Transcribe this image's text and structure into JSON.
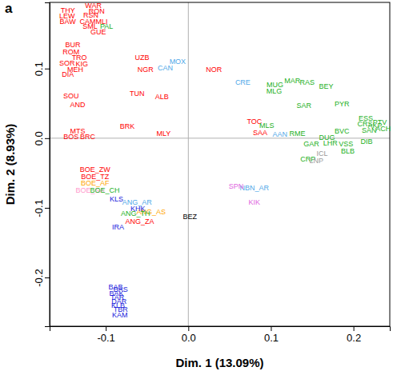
{
  "chart_data": {
    "type": "scatter",
    "title": "a",
    "xlabel": "Dim. 1 (13.09%)",
    "ylabel": "Dim. 2 (8.93%)",
    "marker": "text",
    "xlim": [
      -0.168,
      0.244
    ],
    "ylim": [
      -0.27,
      0.195
    ],
    "xticks": [
      -0.1,
      {
        "value": 0,
        "label": "0.0"
      },
      0.1,
      0.2
    ],
    "yticks": [
      -0.2,
      -0.1,
      {
        "value": 0,
        "label": "0.0"
      },
      0.1
    ],
    "series": [
      {
        "color": "#ff0000",
        "labels": [
          "THY",
          "LEW",
          "BAW",
          "WAR",
          "RON",
          "RSN",
          "CAM",
          "MLI",
          "SML",
          "GUE",
          "BUR",
          "ROM",
          "TRO",
          "SOR",
          "KIG",
          "MEH",
          "DIA",
          "UZB",
          "NGR",
          "NOR",
          "TUN",
          "ALB",
          "SOU",
          "AND",
          "BRK",
          "MLY",
          "MTS",
          "BOS",
          "BRC",
          "TOC",
          "SAA",
          "BOE_ZW",
          "BOE_TZ",
          "ANG_ZA"
        ],
        "x": [
          -0.146,
          -0.147,
          -0.146,
          -0.115,
          -0.111,
          -0.118,
          -0.122,
          -0.105,
          -0.119,
          -0.109,
          -0.14,
          -0.142,
          -0.132,
          -0.147,
          -0.129,
          -0.137,
          -0.146,
          -0.056,
          -0.052,
          0.031,
          -0.062,
          -0.032,
          -0.142,
          -0.134,
          -0.074,
          -0.03,
          -0.134,
          -0.142,
          -0.122,
          0.08,
          0.087,
          -0.113,
          -0.113,
          -0.059
        ],
        "values": [
          0.184,
          0.176,
          0.168,
          0.19,
          0.182,
          0.177,
          0.168,
          0.168,
          0.16,
          0.152,
          0.134,
          0.124,
          0.116,
          0.108,
          0.107,
          0.099,
          0.092,
          0.116,
          0.099,
          0.099,
          0.064,
          0.06,
          0.061,
          0.048,
          0.017,
          0.007,
          0.01,
          0.002,
          0.002,
          0.024,
          0.008,
          -0.045,
          -0.055,
          -0.12
        ]
      },
      {
        "color": "#ffa500",
        "labels": [
          "BOE_AF",
          "ANG_AS"
        ],
        "x": [
          -0.113,
          -0.045
        ],
        "values": [
          -0.064,
          -0.106
        ]
      },
      {
        "color": "#ff99cc",
        "labels": [
          "BOE_SA"
        ],
        "x": [
          -0.119
        ],
        "values": [
          -0.075
        ]
      },
      {
        "color": "#22b022",
        "labels": [
          "PAL",
          "BOE_CH",
          "ANG_TH",
          "MUG",
          "MAR",
          "RAS",
          "BEY",
          "MLG",
          "SAR",
          "PYR",
          "ESS",
          "CRS",
          "PTV",
          "MLS",
          "RME",
          "BVC",
          "DUG",
          "SAN",
          "GAR",
          "LHR",
          "VSS",
          "DIB",
          "BLB",
          "CRP",
          "ACH",
          "AKP"
        ],
        "x": [
          -0.099,
          -0.101,
          -0.064,
          0.105,
          0.126,
          0.144,
          0.167,
          0.104,
          0.14,
          0.186,
          0.215,
          0.214,
          0.232,
          0.095,
          0.132,
          0.186,
          0.168,
          0.219,
          0.149,
          0.172,
          0.191,
          0.216,
          0.193,
          0.145,
          0.236,
          0.226
        ],
        "values": [
          0.16,
          -0.075,
          -0.108,
          0.077,
          0.082,
          0.08,
          0.075,
          0.067,
          0.047,
          0.049,
          0.028,
          0.02,
          0.023,
          0.018,
          0.007,
          0.01,
          0.001,
          0.011,
          -0.008,
          -0.007,
          -0.008,
          -0.005,
          -0.018,
          -0.03,
          0.014,
          0.018
        ]
      },
      {
        "color": "#1a1adc",
        "labels": [
          "KLS",
          "KHK",
          "IRA",
          "BAB",
          "BAS",
          "BAK",
          "TAR",
          "DAR",
          "KLB",
          "TBR",
          "KAM"
        ],
        "x": [
          -0.087,
          -0.061,
          -0.085,
          -0.088,
          -0.082,
          -0.087,
          -0.086,
          -0.084,
          -0.085,
          -0.082,
          -0.083
        ],
        "values": [
          -0.087,
          -0.101,
          -0.128,
          -0.214,
          -0.217,
          -0.223,
          -0.229,
          -0.234,
          -0.24,
          -0.246,
          -0.254
        ]
      },
      {
        "color": "#4fa8e8",
        "labels": [
          "ANG_AR",
          "CAN",
          "MOX",
          "CRE",
          "NBN_AR",
          "AAN"
        ],
        "x": [
          -0.062,
          -0.028,
          -0.013,
          0.066,
          0.08,
          0.111
        ],
        "values": [
          -0.092,
          0.101,
          0.11,
          0.08,
          -0.071,
          0.005
        ]
      },
      {
        "color": "#e066e0",
        "labels": [
          "SPN",
          "KIK"
        ],
        "x": [
          0.058,
          0.08
        ],
        "values": [
          -0.069,
          -0.092
        ]
      },
      {
        "color": "#000000",
        "labels": [
          "BEZ"
        ],
        "x": [
          0.002
        ],
        "values": [
          -0.113
        ]
      },
      {
        "color": "#999999",
        "labels": [
          "ICL",
          "LNP"
        ],
        "x": [
          0.162,
          0.155
        ],
        "values": [
          -0.022,
          -0.032
        ]
      }
    ]
  }
}
